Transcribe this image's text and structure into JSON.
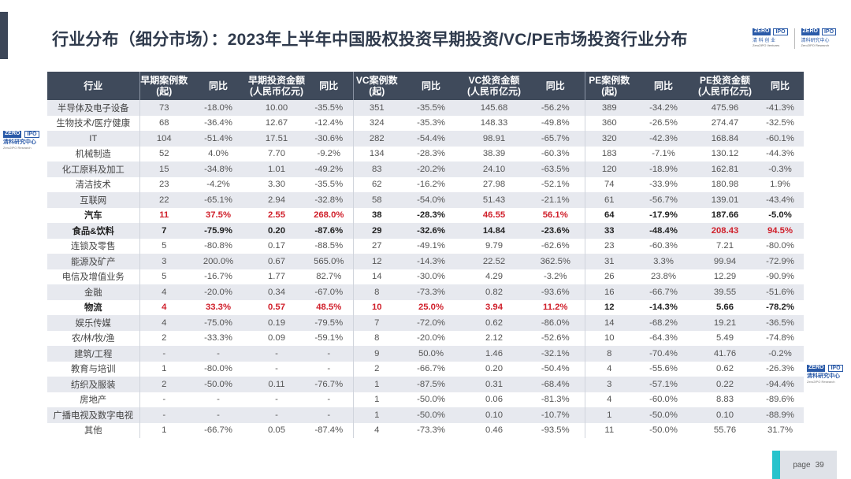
{
  "title": "行业分布（细分市场）：2023年上半年中国股权投资早期投资/VC/PE市场投资行业分布",
  "logos": [
    {
      "badge_left": "ZERO",
      "badge_right": "IPO",
      "cn": "清 科 创 业",
      "en": "Zero2IPO Ventures"
    },
    {
      "badge_left": "ZERO",
      "badge_right": "IPO",
      "cn": "清科研究中心",
      "en": "Zero2IPO Research"
    }
  ],
  "watermark": {
    "badge_left": "ZERO",
    "badge_right": "IPO",
    "cn": "清科研究中心",
    "en": "Zero2IPO Research"
  },
  "table": {
    "headers": [
      "行业",
      "早期案例数\n(起)",
      "同比",
      "早期投资金额\n(人民币亿元)",
      "同比",
      "VC案例数\n(起)",
      "同比",
      "VC投资金额\n(人民币亿元)",
      "同比",
      "PE案例数\n(起)",
      "同比",
      "PE投资金额\n(人民币亿元)",
      "同比"
    ],
    "rows": [
      {
        "cells": [
          "半导体及电子设备",
          "73",
          "-18.0%",
          "10.00",
          "-35.5%",
          "351",
          "-35.5%",
          "145.68",
          "-56.2%",
          "389",
          "-34.2%",
          "475.96",
          "-41.3%"
        ]
      },
      {
        "cells": [
          "生物技术/医疗健康",
          "68",
          "-36.4%",
          "12.67",
          "-12.4%",
          "324",
          "-35.3%",
          "148.33",
          "-49.8%",
          "360",
          "-26.5%",
          "274.47",
          "-32.5%"
        ]
      },
      {
        "cells": [
          "IT",
          "104",
          "-51.4%",
          "17.51",
          "-30.6%",
          "282",
          "-54.4%",
          "98.91",
          "-65.7%",
          "320",
          "-42.3%",
          "168.84",
          "-60.1%"
        ]
      },
      {
        "cells": [
          "机械制造",
          "52",
          "4.0%",
          "7.70",
          "-9.2%",
          "134",
          "-28.3%",
          "38.39",
          "-60.3%",
          "183",
          "-7.1%",
          "130.12",
          "-44.3%"
        ]
      },
      {
        "cells": [
          "化工原料及加工",
          "15",
          "-34.8%",
          "1.01",
          "-49.2%",
          "83",
          "-20.2%",
          "24.10",
          "-63.5%",
          "120",
          "-18.9%",
          "162.81",
          "-0.3%"
        ]
      },
      {
        "cells": [
          "清洁技术",
          "23",
          "-4.2%",
          "3.30",
          "-35.5%",
          "62",
          "-16.2%",
          "27.98",
          "-52.1%",
          "74",
          "-33.9%",
          "180.98",
          "1.9%"
        ]
      },
      {
        "cells": [
          "互联网",
          "22",
          "-65.1%",
          "2.94",
          "-32.8%",
          "58",
          "-54.0%",
          "51.43",
          "-21.1%",
          "61",
          "-56.7%",
          "139.01",
          "-43.4%"
        ]
      },
      {
        "cells": [
          "汽车",
          "11",
          "37.5%",
          "2.55",
          "268.0%",
          "38",
          "-28.3%",
          "46.55",
          "56.1%",
          "64",
          "-17.9%",
          "187.66",
          "-5.0%"
        ],
        "bold": true,
        "red": [
          1,
          2,
          3,
          4,
          7,
          8
        ]
      },
      {
        "cells": [
          "食品&饮料",
          "7",
          "-75.9%",
          "0.20",
          "-87.6%",
          "29",
          "-32.6%",
          "14.84",
          "-23.6%",
          "33",
          "-48.4%",
          "208.43",
          "94.5%"
        ],
        "bold": true,
        "red": [
          11,
          12
        ]
      },
      {
        "cells": [
          "连锁及零售",
          "5",
          "-80.8%",
          "0.17",
          "-88.5%",
          "27",
          "-49.1%",
          "9.79",
          "-62.6%",
          "23",
          "-60.3%",
          "7.21",
          "-80.0%"
        ]
      },
      {
        "cells": [
          "能源及矿产",
          "3",
          "200.0%",
          "0.67",
          "565.0%",
          "12",
          "-14.3%",
          "22.52",
          "362.5%",
          "31",
          "3.3%",
          "99.94",
          "-72.9%"
        ]
      },
      {
        "cells": [
          "电信及增值业务",
          "5",
          "-16.7%",
          "1.77",
          "82.7%",
          "14",
          "-30.0%",
          "4.29",
          "-3.2%",
          "26",
          "23.8%",
          "12.29",
          "-90.9%"
        ]
      },
      {
        "cells": [
          "金融",
          "4",
          "-20.0%",
          "0.34",
          "-67.0%",
          "8",
          "-73.3%",
          "0.82",
          "-93.6%",
          "16",
          "-66.7%",
          "39.55",
          "-51.6%"
        ]
      },
      {
        "cells": [
          "物流",
          "4",
          "33.3%",
          "0.57",
          "48.5%",
          "10",
          "25.0%",
          "3.94",
          "11.2%",
          "12",
          "-14.3%",
          "5.66",
          "-78.2%"
        ],
        "bold": true,
        "red": [
          1,
          2,
          3,
          4,
          5,
          6,
          7,
          8
        ]
      },
      {
        "cells": [
          "娱乐传媒",
          "4",
          "-75.0%",
          "0.19",
          "-79.5%",
          "7",
          "-72.0%",
          "0.62",
          "-86.0%",
          "14",
          "-68.2%",
          "19.21",
          "-36.5%"
        ]
      },
      {
        "cells": [
          "农/林/牧/渔",
          "2",
          "-33.3%",
          "0.09",
          "-59.1%",
          "8",
          "-20.0%",
          "2.12",
          "-52.6%",
          "10",
          "-64.3%",
          "5.49",
          "-74.8%"
        ]
      },
      {
        "cells": [
          "建筑/工程",
          "-",
          "-",
          "-",
          "-",
          "9",
          "50.0%",
          "1.46",
          "-32.1%",
          "8",
          "-70.4%",
          "41.76",
          "-0.2%"
        ]
      },
      {
        "cells": [
          "教育与培训",
          "1",
          "-80.0%",
          "-",
          "-",
          "2",
          "-66.7%",
          "0.20",
          "-50.4%",
          "4",
          "-55.6%",
          "0.62",
          "-26.3%"
        ]
      },
      {
        "cells": [
          "纺织及服装",
          "2",
          "-50.0%",
          "0.11",
          "-76.7%",
          "1",
          "-87.5%",
          "0.31",
          "-68.4%",
          "3",
          "-57.1%",
          "0.22",
          "-94.4%"
        ]
      },
      {
        "cells": [
          "房地产",
          "-",
          "-",
          "-",
          "-",
          "1",
          "-50.0%",
          "0.06",
          "-81.3%",
          "4",
          "-60.0%",
          "8.83",
          "-89.6%"
        ]
      },
      {
        "cells": [
          "广播电视及数字电视",
          "-",
          "-",
          "-",
          "-",
          "1",
          "-50.0%",
          "0.10",
          "-10.7%",
          "1",
          "-50.0%",
          "0.10",
          "-88.9%"
        ]
      },
      {
        "cells": [
          "其他",
          "1",
          "-66.7%",
          "0.05",
          "-87.4%",
          "4",
          "-73.3%",
          "0.46",
          "-93.5%",
          "11",
          "-50.0%",
          "55.76",
          "31.7%"
        ]
      }
    ]
  },
  "footer": {
    "page_label": "page",
    "page_number": "39"
  },
  "colors": {
    "header_bg": "#3f4a5b",
    "highlight_red": "#d0202b",
    "accent": "#27c3cc"
  }
}
